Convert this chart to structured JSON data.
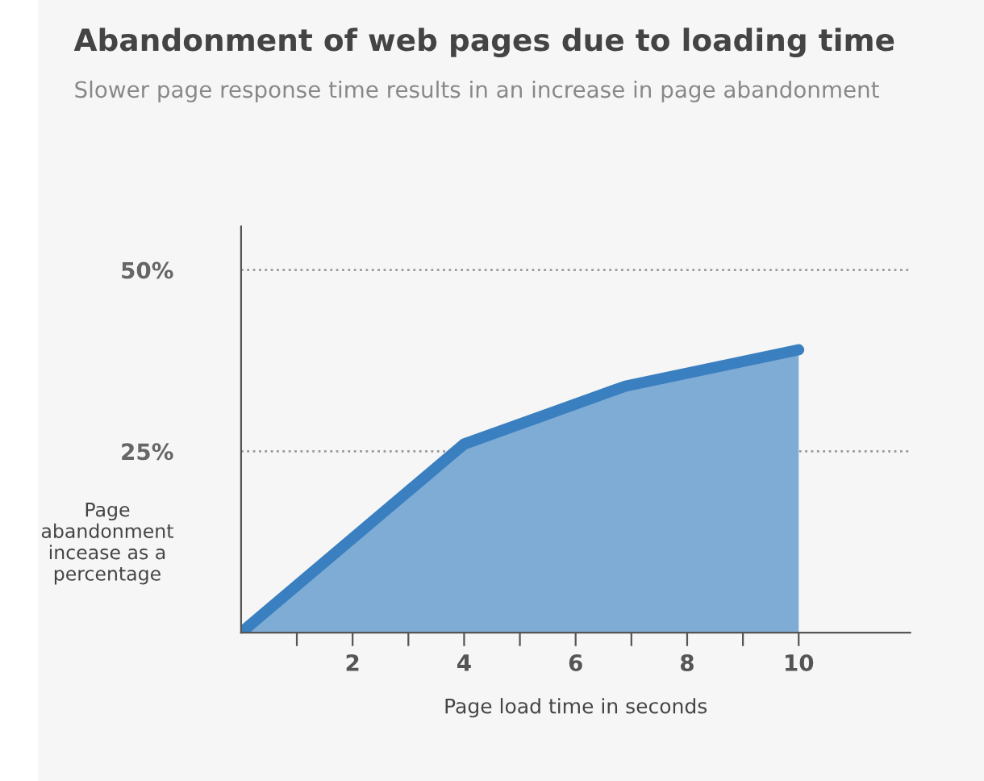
{
  "chart_data": {
    "type": "area",
    "title": "Abandonment of web pages due to loading time",
    "subtitle": "Slower page response time results in an increase in page abandonment",
    "xlabel": "Page load time in seconds",
    "ylabel": "Page\nabandonment\nincease as a\npercentage",
    "x": [
      0,
      4,
      6.9,
      10
    ],
    "series": [
      {
        "color": "#3a7fbf",
        "values": [
          0,
          26,
          34,
          39
        ]
      }
    ],
    "xlim": [
      0,
      12
    ],
    "ylim": [
      0,
      56
    ],
    "xticks": [
      {
        "value": 1,
        "label": null
      },
      2,
      {
        "value": 3,
        "label": null
      },
      4,
      {
        "value": 5,
        "label": null
      },
      6,
      {
        "value": 7,
        "label": null
      },
      8,
      {
        "value": 9,
        "label": null
      },
      10
    ],
    "yticks": [
      {
        "value": 25,
        "label": "25%"
      },
      {
        "value": 50,
        "label": "50%"
      }
    ],
    "grid": "y",
    "line_style": "solid"
  }
}
